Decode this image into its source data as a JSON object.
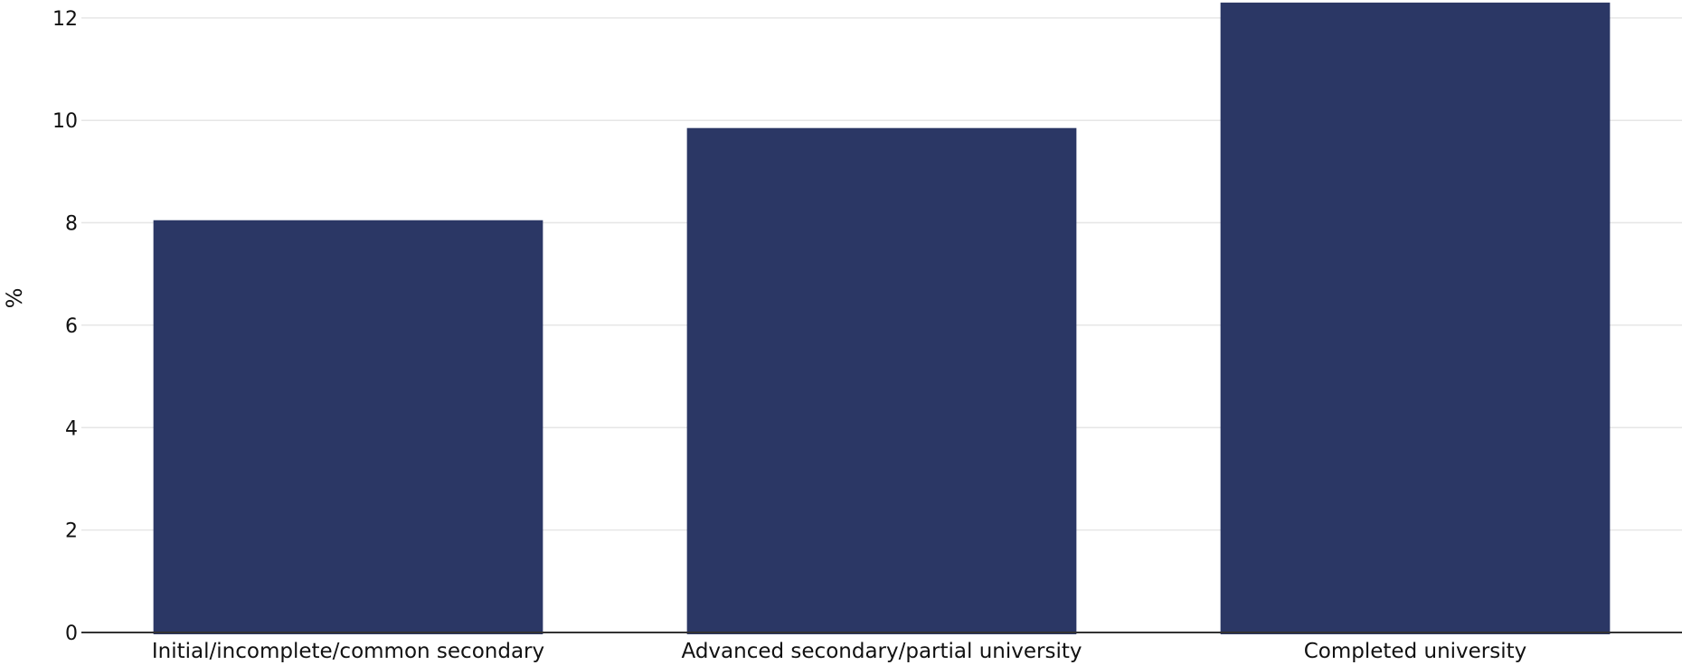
{
  "chart_data": {
    "type": "bar",
    "categories": [
      "Initial/incomplete/common secondary",
      "Advanced secondary/partial university",
      "Completed university"
    ],
    "values": [
      8.05,
      9.85,
      12.3
    ],
    "title": "",
    "xlabel": "",
    "ylabel": "%",
    "ylim": [
      0,
      12.35
    ],
    "yticks": [
      0,
      2,
      4,
      6,
      8,
      10,
      12
    ],
    "grid": true,
    "legend": "none",
    "colors": {
      "bar": "#2b3765",
      "grid": "#e6e6e6",
      "axis": "#333333"
    }
  }
}
